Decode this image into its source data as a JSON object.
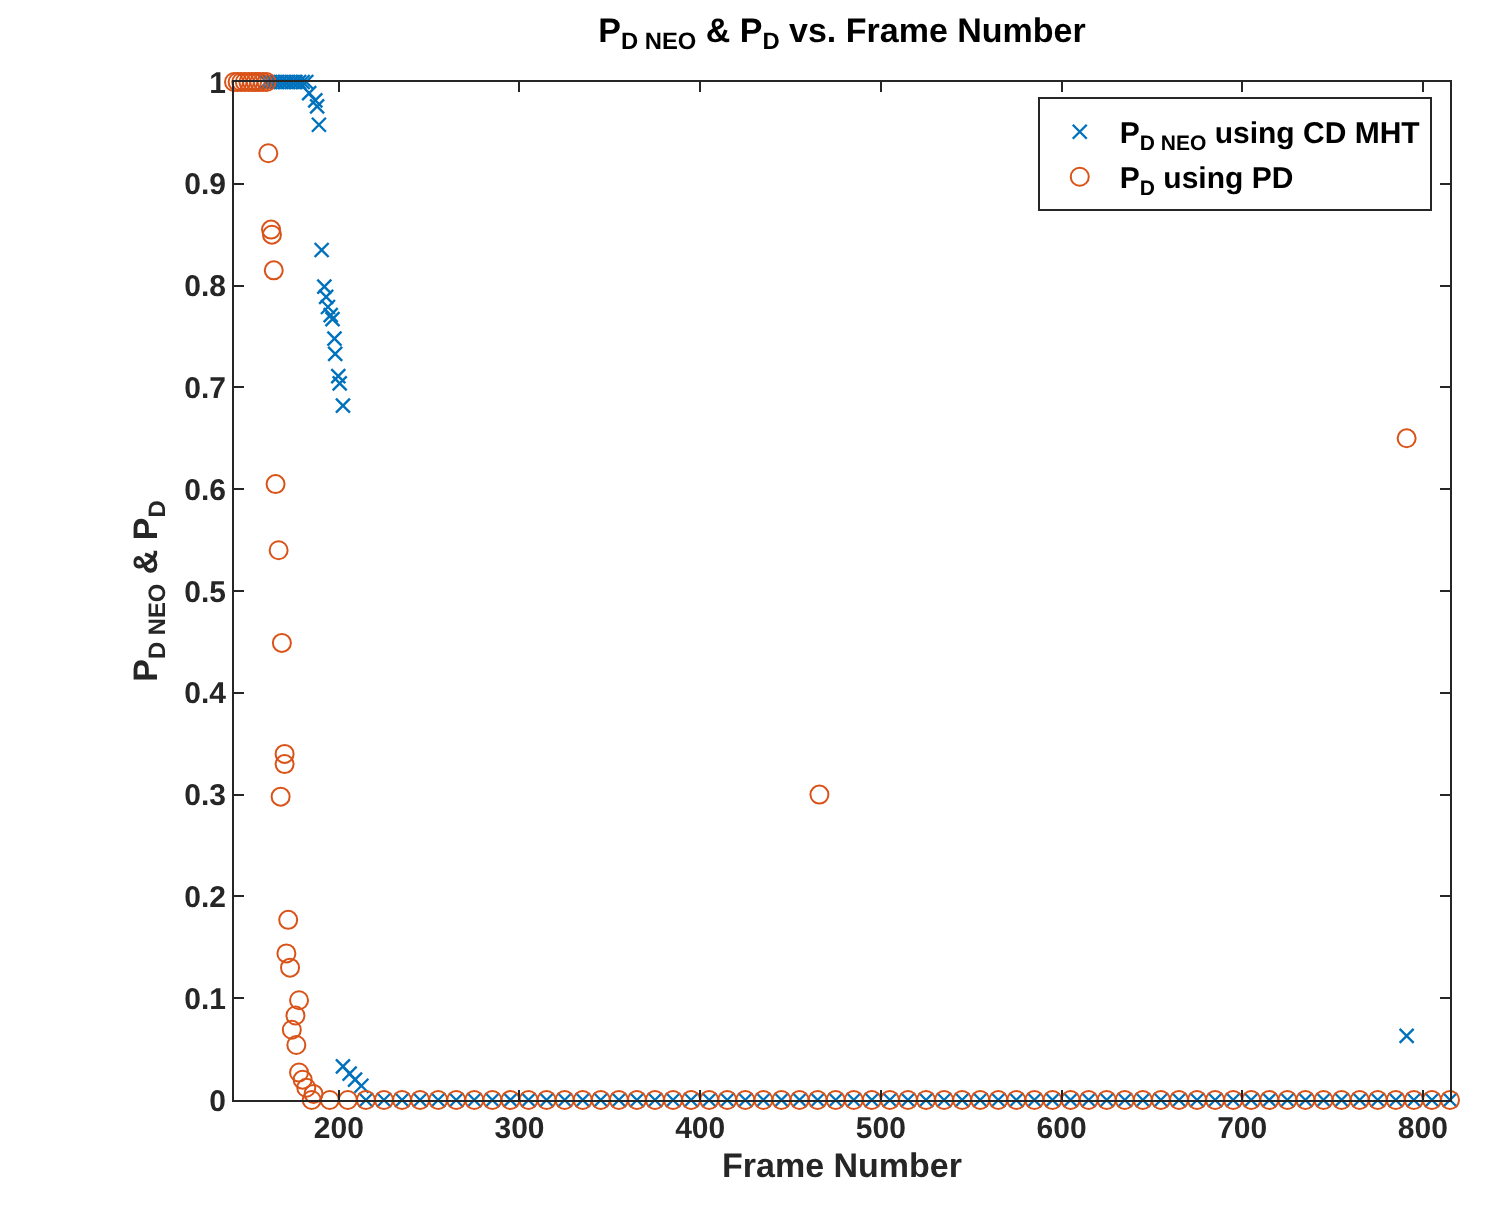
{
  "chart_data": {
    "type": "scatter",
    "title": "P$_{D NEO}$ & P$_{D}$ vs. Frame Number",
    "xlabel": "Frame Number",
    "ylabel": "P$_{D NEO}$ & P$_{D}$",
    "xlim": [
      142,
      815
    ],
    "xticks": [
      200,
      300,
      400,
      500,
      600,
      700,
      800
    ],
    "ylim": [
      0,
      1
    ],
    "yticks": [
      0,
      0.1,
      0.2,
      0.3,
      0.4,
      0.5,
      0.6,
      0.7,
      0.8,
      0.9,
      1
    ],
    "grid": false,
    "legend": "top right",
    "series": [
      {
        "name": "P$_{D NEO}$ using CD MHT",
        "color": "#0072bd",
        "marker": "cross",
        "x": [
          160,
          162,
          164,
          166,
          168,
          170,
          172,
          174,
          176,
          178,
          180,
          182,
          183.6,
          187,
          188,
          189,
          190.5,
          192,
          193,
          194,
          195.5,
          196.5,
          197.6,
          198,
          199.7,
          200.5,
          202.3,
          202.3,
          206,
          209,
          212.5,
          215,
          225,
          235,
          245,
          255,
          265,
          275,
          285,
          295,
          305,
          315,
          325,
          335,
          345,
          355,
          365,
          375,
          385,
          395,
          405,
          415,
          425,
          435,
          445,
          455,
          465,
          475,
          485,
          495,
          505,
          515,
          525,
          535,
          545,
          555,
          565,
          575,
          585,
          595,
          605,
          615,
          625,
          635,
          645,
          655,
          665,
          675,
          685,
          695,
          705,
          715,
          725,
          735,
          745,
          755,
          765,
          775,
          785,
          795,
          805,
          815,
          791
        ],
        "values": [
          1,
          1,
          1,
          1,
          1,
          1,
          1,
          1,
          1,
          1,
          1,
          1,
          0.989,
          0.982,
          0.976,
          0.958,
          0.835,
          0.799,
          0.789,
          0.779,
          0.771,
          0.767,
          0.748,
          0.733,
          0.711,
          0.704,
          0.682,
          0.033,
          0.026,
          0.02,
          0.014,
          0,
          0,
          0,
          0,
          0,
          0,
          0,
          0,
          0,
          0,
          0,
          0,
          0,
          0,
          0,
          0,
          0,
          0,
          0,
          0,
          0,
          0,
          0,
          0,
          0,
          0,
          0,
          0,
          0,
          0,
          0,
          0,
          0,
          0,
          0,
          0,
          0,
          0,
          0,
          0,
          0,
          0,
          0,
          0,
          0,
          0,
          0,
          0,
          0,
          0,
          0,
          0,
          0,
          0,
          0,
          0,
          0,
          0,
          0,
          0,
          0,
          0.063
        ]
      },
      {
        "name": "P$_{D}$ using PD",
        "color": "#d95319",
        "marker": "circle",
        "x": [
          142,
          144,
          146,
          148,
          150,
          152,
          154,
          156,
          158,
          160,
          161,
          162.5,
          163,
          164,
          165,
          166.7,
          168.5,
          170,
          170,
          167.8,
          172,
          171,
          173,
          178,
          176,
          174,
          176.5,
          178,
          180,
          182,
          186,
          185,
          195,
          205,
          215,
          225,
          235,
          245,
          255,
          265,
          275,
          285,
          295,
          305,
          315,
          325,
          335,
          345,
          355,
          365,
          375,
          385,
          395,
          405,
          415,
          425,
          435,
          445,
          455,
          465,
          475,
          485,
          495,
          505,
          515,
          525,
          535,
          545,
          555,
          565,
          575,
          585,
          595,
          605,
          615,
          625,
          635,
          645,
          655,
          665,
          675,
          685,
          695,
          705,
          715,
          725,
          735,
          745,
          755,
          765,
          775,
          785,
          795,
          805,
          815,
          466,
          791
        ],
        "values": [
          1,
          1,
          1,
          1,
          1,
          1,
          1,
          1,
          1,
          1,
          0.93,
          0.855,
          0.85,
          0.815,
          0.605,
          0.54,
          0.449,
          0.34,
          0.33,
          0.298,
          0.177,
          0.144,
          0.13,
          0.098,
          0.083,
          0.069,
          0.054,
          0.027,
          0.02,
          0.012,
          0.006,
          0,
          0,
          0,
          0,
          0,
          0,
          0,
          0,
          0,
          0,
          0,
          0,
          0,
          0,
          0,
          0,
          0,
          0,
          0,
          0,
          0,
          0,
          0,
          0,
          0,
          0,
          0,
          0,
          0,
          0,
          0,
          0,
          0,
          0,
          0,
          0,
          0,
          0,
          0,
          0,
          0,
          0,
          0,
          0,
          0,
          0,
          0,
          0,
          0,
          0,
          0,
          0,
          0,
          0,
          0,
          0,
          0,
          0,
          0,
          0,
          0,
          0,
          0,
          0,
          0.3,
          0.65
        ]
      }
    ]
  }
}
